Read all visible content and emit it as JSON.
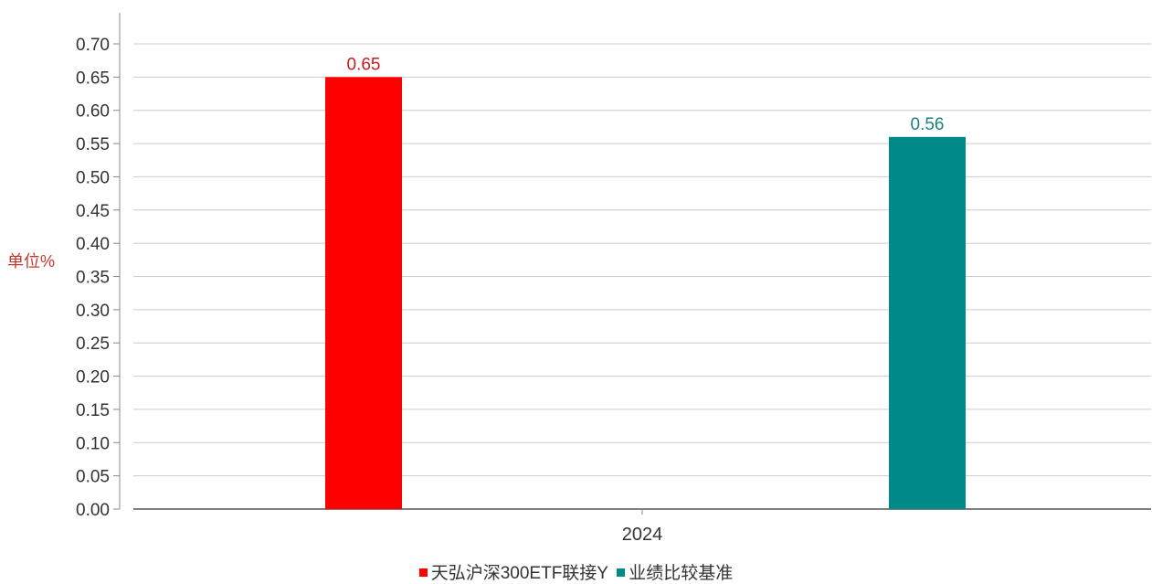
{
  "chart_data": {
    "type": "bar",
    "title": "",
    "xlabel": "",
    "ylabel": "单位%",
    "categories": [
      "2024"
    ],
    "ylim": [
      0,
      0.7
    ],
    "yticks": [
      "0.00",
      "0.05",
      "0.10",
      "0.15",
      "0.20",
      "0.25",
      "0.30",
      "0.35",
      "0.40",
      "0.45",
      "0.50",
      "0.55",
      "0.60",
      "0.65",
      "0.70"
    ],
    "grid": true,
    "legend_position": "bottom",
    "series": [
      {
        "name": "天弘沪深300ETF联接Y",
        "values": [
          0.65
        ],
        "labels": [
          "0.65"
        ],
        "color": "#ff0000",
        "label_color": "#cc1a1a"
      },
      {
        "name": "业绩比较基准",
        "values": [
          0.56
        ],
        "labels": [
          "0.56"
        ],
        "color": "#008b8b",
        "label_color": "#1a7f7f"
      }
    ],
    "ylabel_color": "#c0392b"
  }
}
